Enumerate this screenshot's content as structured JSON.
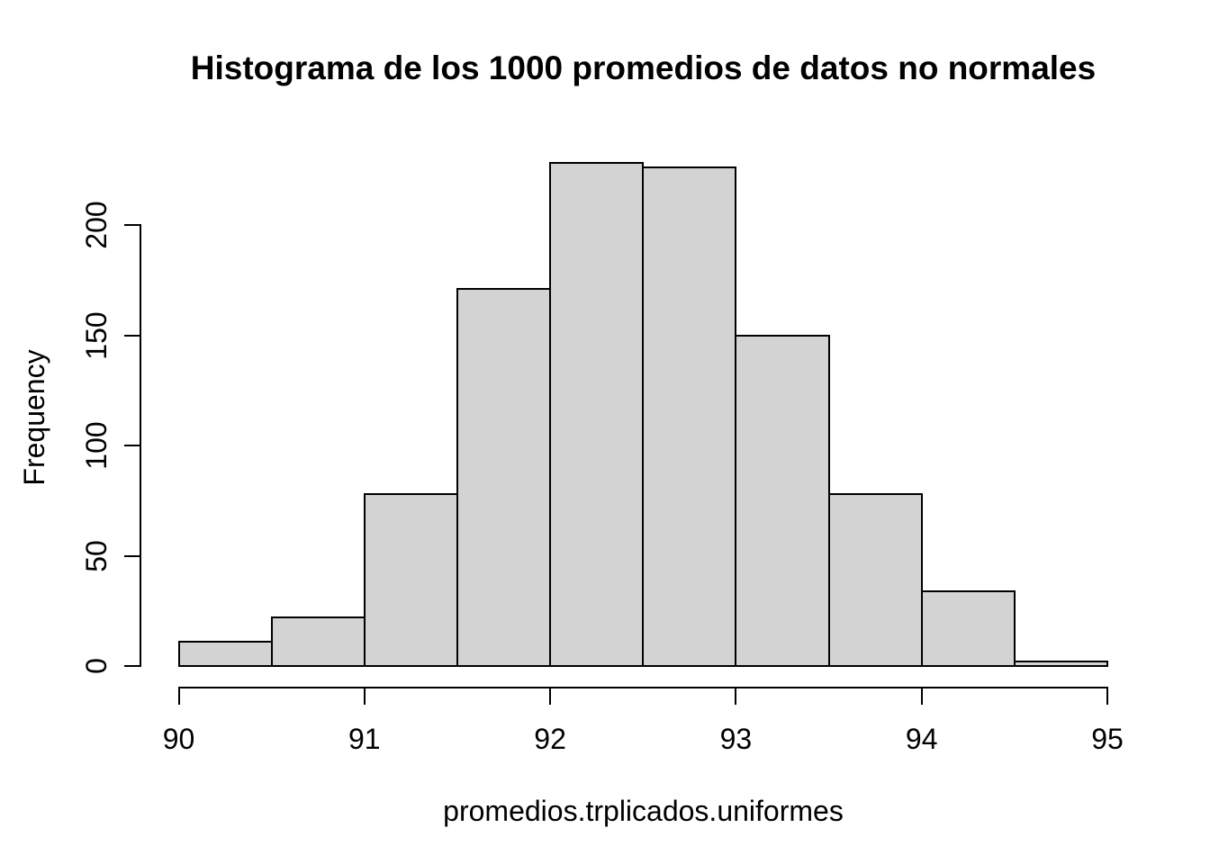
{
  "chart_data": {
    "type": "bar",
    "subtype": "histogram",
    "title": "Histograma de los 1000 promedios de datos no normales",
    "xlabel": "promedios.trplicados.uniformes",
    "ylabel": "Frequency",
    "bin_edges": [
      90,
      90.5,
      91,
      91.5,
      92,
      92.5,
      93,
      93.5,
      94,
      94.5,
      95
    ],
    "counts": [
      11,
      22,
      78,
      171,
      228,
      226,
      150,
      78,
      34,
      2
    ],
    "x_ticks": [
      "90",
      "91",
      "92",
      "93",
      "94",
      "95"
    ],
    "y_ticks": [
      "0",
      "50",
      "100",
      "150",
      "200"
    ],
    "xlim": [
      90,
      95
    ],
    "ylim": [
      0,
      228
    ],
    "grid": false,
    "legend": false,
    "colors": {
      "bar_fill": "#d3d3d3",
      "bar_border": "#000000",
      "axis": "#000000",
      "text": "#000000",
      "background": "#ffffff"
    }
  }
}
